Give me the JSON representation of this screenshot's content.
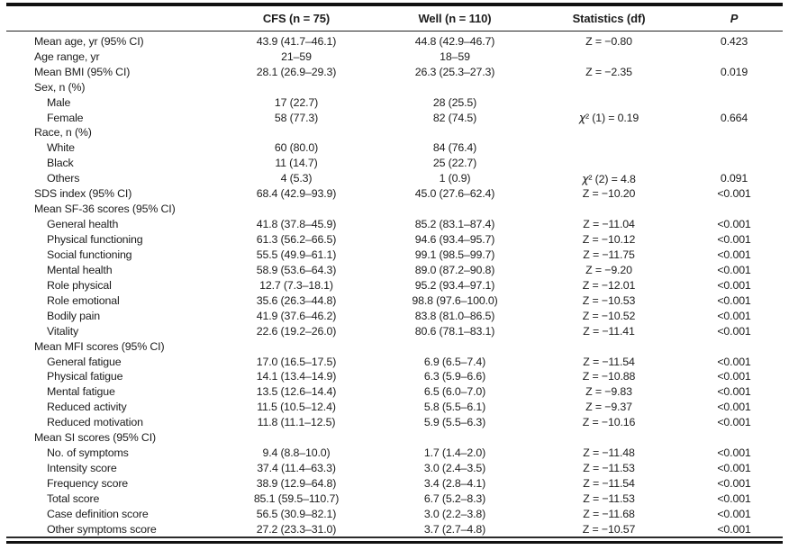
{
  "colors": {
    "background": "#ffffff",
    "text": "#1c1c1c",
    "rule": "#111111"
  },
  "table": {
    "header": {
      "label_col": "",
      "cfs": "CFS (n = 75)",
      "well": "Well (n = 110)",
      "statistics": "Statistics (df)",
      "p": "P"
    },
    "rows": [
      {
        "label": "Mean age, yr (95% CI)",
        "indent": 0,
        "cfs": "43.9 (41.7–46.1)",
        "well": "44.8 (42.9–46.7)",
        "stat": "Z = −0.80",
        "p": "0.423"
      },
      {
        "label": "Age range, yr",
        "indent": 0,
        "cfs": "21–59",
        "well": "18–59",
        "stat": "",
        "p": ""
      },
      {
        "label": "Mean BMI (95% CI)",
        "indent": 0,
        "cfs": "28.1 (26.9–29.3)",
        "well": "26.3 (25.3–27.3)",
        "stat": "Z = −2.35",
        "p": "0.019"
      },
      {
        "label": "Sex, n (%)",
        "indent": 0,
        "cfs": "",
        "well": "",
        "stat": "",
        "p": ""
      },
      {
        "label": "Male",
        "indent": 1,
        "cfs": "17 (22.7)",
        "well": "28 (25.5)",
        "stat": "",
        "p": ""
      },
      {
        "label": "Female",
        "indent": 1,
        "cfs": "58 (77.3)",
        "well": "82 (74.5)",
        "stat": "χ² (1) = 0.19",
        "p": "0.664"
      },
      {
        "label": "Race, n (%)",
        "indent": 0,
        "cfs": "",
        "well": "",
        "stat": "",
        "p": ""
      },
      {
        "label": "White",
        "indent": 1,
        "cfs": "60 (80.0)",
        "well": "84 (76.4)",
        "stat": "",
        "p": ""
      },
      {
        "label": "Black",
        "indent": 1,
        "cfs": "11 (14.7)",
        "well": "25 (22.7)",
        "stat": "",
        "p": ""
      },
      {
        "label": "Others",
        "indent": 1,
        "cfs": "4 (5.3)",
        "well": "1 (0.9)",
        "stat": "χ² (2) = 4.8",
        "p": "0.091"
      },
      {
        "label": "SDS index (95% CI)",
        "indent": 0,
        "cfs": "68.4 (42.9–93.9)",
        "well": "45.0 (27.6–62.4)",
        "stat": "Z = −10.20",
        "p": "<0.001"
      },
      {
        "label": "Mean SF-36 scores (95% CI)",
        "indent": 0,
        "cfs": "",
        "well": "",
        "stat": "",
        "p": ""
      },
      {
        "label": "General health",
        "indent": 1,
        "cfs": "41.8 (37.8–45.9)",
        "well": "85.2 (83.1–87.4)",
        "stat": "Z = −11.04",
        "p": "<0.001"
      },
      {
        "label": "Physical functioning",
        "indent": 1,
        "cfs": "61.3 (56.2–66.5)",
        "well": "94.6 (93.4–95.7)",
        "stat": "Z = −10.12",
        "p": "<0.001"
      },
      {
        "label": "Social functioning",
        "indent": 1,
        "cfs": "55.5 (49.9–61.1)",
        "well": "99.1 (98.5–99.7)",
        "stat": "Z = −11.75",
        "p": "<0.001"
      },
      {
        "label": "Mental health",
        "indent": 1,
        "cfs": "58.9 (53.6–64.3)",
        "well": "89.0 (87.2–90.8)",
        "stat": "Z = −9.20",
        "p": "<0.001"
      },
      {
        "label": "Role physical",
        "indent": 1,
        "cfs": "12.7 (7.3–18.1)",
        "well": "95.2 (93.4–97.1)",
        "stat": "Z = −12.01",
        "p": "<0.001"
      },
      {
        "label": "Role emotional",
        "indent": 1,
        "cfs": "35.6 (26.3–44.8)",
        "well": "98.8 (97.6–100.0)",
        "stat": "Z = −10.53",
        "p": "<0.001"
      },
      {
        "label": "Bodily pain",
        "indent": 1,
        "cfs": "41.9 (37.6–46.2)",
        "well": "83.8 (81.0–86.5)",
        "stat": "Z = −10.52",
        "p": "<0.001"
      },
      {
        "label": "Vitality",
        "indent": 1,
        "cfs": "22.6 (19.2–26.0)",
        "well": "80.6 (78.1–83.1)",
        "stat": "Z = −11.41",
        "p": "<0.001"
      },
      {
        "label": "Mean MFI scores (95% CI)",
        "indent": 0,
        "cfs": "",
        "well": "",
        "stat": "",
        "p": ""
      },
      {
        "label": "General fatigue",
        "indent": 1,
        "cfs": "17.0 (16.5–17.5)",
        "well": "6.9 (6.5–7.4)",
        "stat": "Z = −11.54",
        "p": "<0.001"
      },
      {
        "label": "Physical fatigue",
        "indent": 1,
        "cfs": "14.1 (13.4–14.9)",
        "well": "6.3 (5.9–6.6)",
        "stat": "Z = −10.88",
        "p": "<0.001"
      },
      {
        "label": "Mental fatigue",
        "indent": 1,
        "cfs": "13.5 (12.6–14.4)",
        "well": "6.5 (6.0–7.0)",
        "stat": "Z = −9.83",
        "p": "<0.001"
      },
      {
        "label": "Reduced activity",
        "indent": 1,
        "cfs": "11.5 (10.5–12.4)",
        "well": "5.8 (5.5–6.1)",
        "stat": "Z = −9.37",
        "p": "<0.001"
      },
      {
        "label": "Reduced motivation",
        "indent": 1,
        "cfs": "11.8 (11.1–12.5)",
        "well": "5.9 (5.5–6.3)",
        "stat": "Z = −10.16",
        "p": "<0.001"
      },
      {
        "label": "Mean SI scores (95% CI)",
        "indent": 0,
        "cfs": "",
        "well": "",
        "stat": "",
        "p": ""
      },
      {
        "label": "No. of symptoms",
        "indent": 1,
        "cfs": "9.4 (8.8–10.0)",
        "well": "1.7 (1.4–2.0)",
        "stat": "Z = −11.48",
        "p": "<0.001"
      },
      {
        "label": "Intensity score",
        "indent": 1,
        "cfs": "37.4 (11.4–63.3)",
        "well": "3.0 (2.4–3.5)",
        "stat": "Z = −11.53",
        "p": "<0.001"
      },
      {
        "label": "Frequency score",
        "indent": 1,
        "cfs": "38.9 (12.9–64.8)",
        "well": "3.4 (2.8–4.1)",
        "stat": "Z = −11.54",
        "p": "<0.001"
      },
      {
        "label": "Total score",
        "indent": 1,
        "cfs": "85.1 (59.5–110.7)",
        "well": "6.7 (5.2–8.3)",
        "stat": "Z = −11.53",
        "p": "<0.001"
      },
      {
        "label": "Case definition score",
        "indent": 1,
        "cfs": "56.5 (30.9–82.1)",
        "well": "3.0 (2.2–3.8)",
        "stat": "Z = −11.68",
        "p": "<0.001"
      },
      {
        "label": "Other symptoms score",
        "indent": 1,
        "cfs": "27.2 (23.3–31.0)",
        "well": "3.7 (2.7–4.8)",
        "stat": "Z = −10.57",
        "p": "<0.001"
      }
    ]
  }
}
